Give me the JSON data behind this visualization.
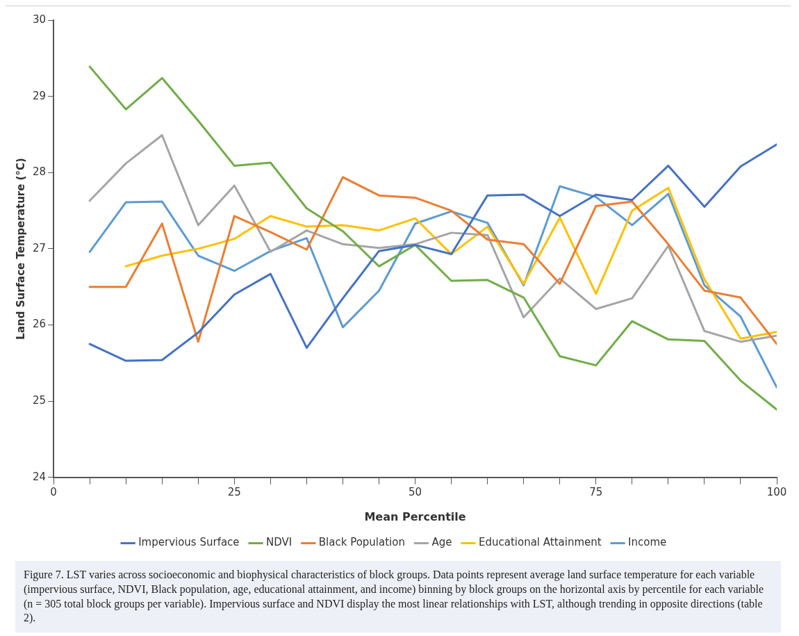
{
  "chart_data": {
    "type": "line",
    "xlabel": "Mean Percentile",
    "ylabel": "Land Surface Temperature (°C)",
    "x": [
      5,
      10,
      15,
      20,
      25,
      30,
      35,
      40,
      45,
      50,
      55,
      60,
      65,
      70,
      75,
      80,
      85,
      90,
      95,
      100
    ],
    "xlim": [
      0,
      100
    ],
    "xticks": [
      0,
      {
        "value": 5,
        "label": null
      },
      {
        "value": 10,
        "label": null
      },
      {
        "value": 15,
        "label": null
      },
      {
        "value": 20,
        "label": null
      },
      25,
      {
        "value": 30,
        "label": null
      },
      {
        "value": 35,
        "label": null
      },
      {
        "value": 40,
        "label": null
      },
      {
        "value": 45,
        "label": null
      },
      50,
      {
        "value": 55,
        "label": null
      },
      {
        "value": 60,
        "label": null
      },
      {
        "value": 65,
        "label": null
      },
      {
        "value": 70,
        "label": null
      },
      75,
      {
        "value": 80,
        "label": null
      },
      {
        "value": 85,
        "label": null
      },
      {
        "value": 90,
        "label": null
      },
      {
        "value": 95,
        "label": null
      },
      100
    ],
    "ylim": [
      24,
      30
    ],
    "yticks": [
      24,
      25,
      26,
      27,
      28,
      29,
      30
    ],
    "grid": false,
    "legend": "bottom",
    "marker": "none",
    "line_style": "solid",
    "series": [
      {
        "name": "Impervious Surface",
        "color": "#4472c4",
        "values": [
          25.75,
          25.53,
          25.54,
          25.9,
          26.4,
          26.67,
          25.7,
          26.35,
          26.97,
          27.05,
          26.93,
          27.7,
          27.71,
          27.43,
          27.71,
          27.64,
          28.09,
          27.55,
          28.08,
          28.37
        ]
      },
      {
        "name": "NDVI",
        "color": "#70ad47",
        "values": [
          29.39,
          28.83,
          29.24,
          28.68,
          28.09,
          28.13,
          27.53,
          27.23,
          26.77,
          27.05,
          26.58,
          26.59,
          26.36,
          25.59,
          25.47,
          26.05,
          25.81,
          25.79,
          25.27,
          24.89
        ]
      },
      {
        "name": "Black Population",
        "color": "#ed7d31",
        "values": [
          26.5,
          26.5,
          27.33,
          25.78,
          27.43,
          27.22,
          26.99,
          27.94,
          27.7,
          27.67,
          27.5,
          27.12,
          27.06,
          26.54,
          27.56,
          27.62,
          27.06,
          26.45,
          26.36,
          25.75
        ]
      },
      {
        "name": "Age",
        "color": "#a5a5a5",
        "values": [
          27.63,
          28.12,
          28.49,
          27.31,
          27.83,
          26.96,
          27.24,
          27.06,
          27.01,
          27.06,
          27.21,
          27.18,
          26.1,
          26.61,
          26.21,
          26.35,
          27.04,
          25.92,
          25.78,
          25.86
        ]
      },
      {
        "name": "Educational Attainment",
        "color": "#ffc000",
        "values": [
          null,
          26.77,
          26.91,
          27.0,
          27.13,
          27.43,
          27.29,
          27.31,
          27.24,
          27.4,
          26.93,
          27.29,
          26.54,
          27.41,
          26.41,
          27.5,
          27.8,
          26.6,
          25.82,
          25.91
        ]
      },
      {
        "name": "Income",
        "color": "#5b9bd5",
        "values": [
          26.96,
          27.61,
          27.62,
          26.91,
          26.71,
          26.97,
          27.14,
          25.97,
          26.45,
          27.33,
          27.49,
          27.34,
          26.52,
          27.82,
          27.68,
          27.31,
          27.72,
          26.52,
          26.11,
          25.18
        ]
      }
    ],
    "annotations": [
      "Figure 7. LST varies across socioeconomic and biophysical characteristics of block groups. Data points represent average land surface temperature for each variable (impervious surface, NDVI, Black population, age, educational attainment, and income) binning by block groups on the horizontal axis by percentile for each variable (n = 305 total block groups per variable). Impervious surface and NDVI display the most linear relationships with LST, although trending in opposite directions (table 2)."
    ]
  }
}
